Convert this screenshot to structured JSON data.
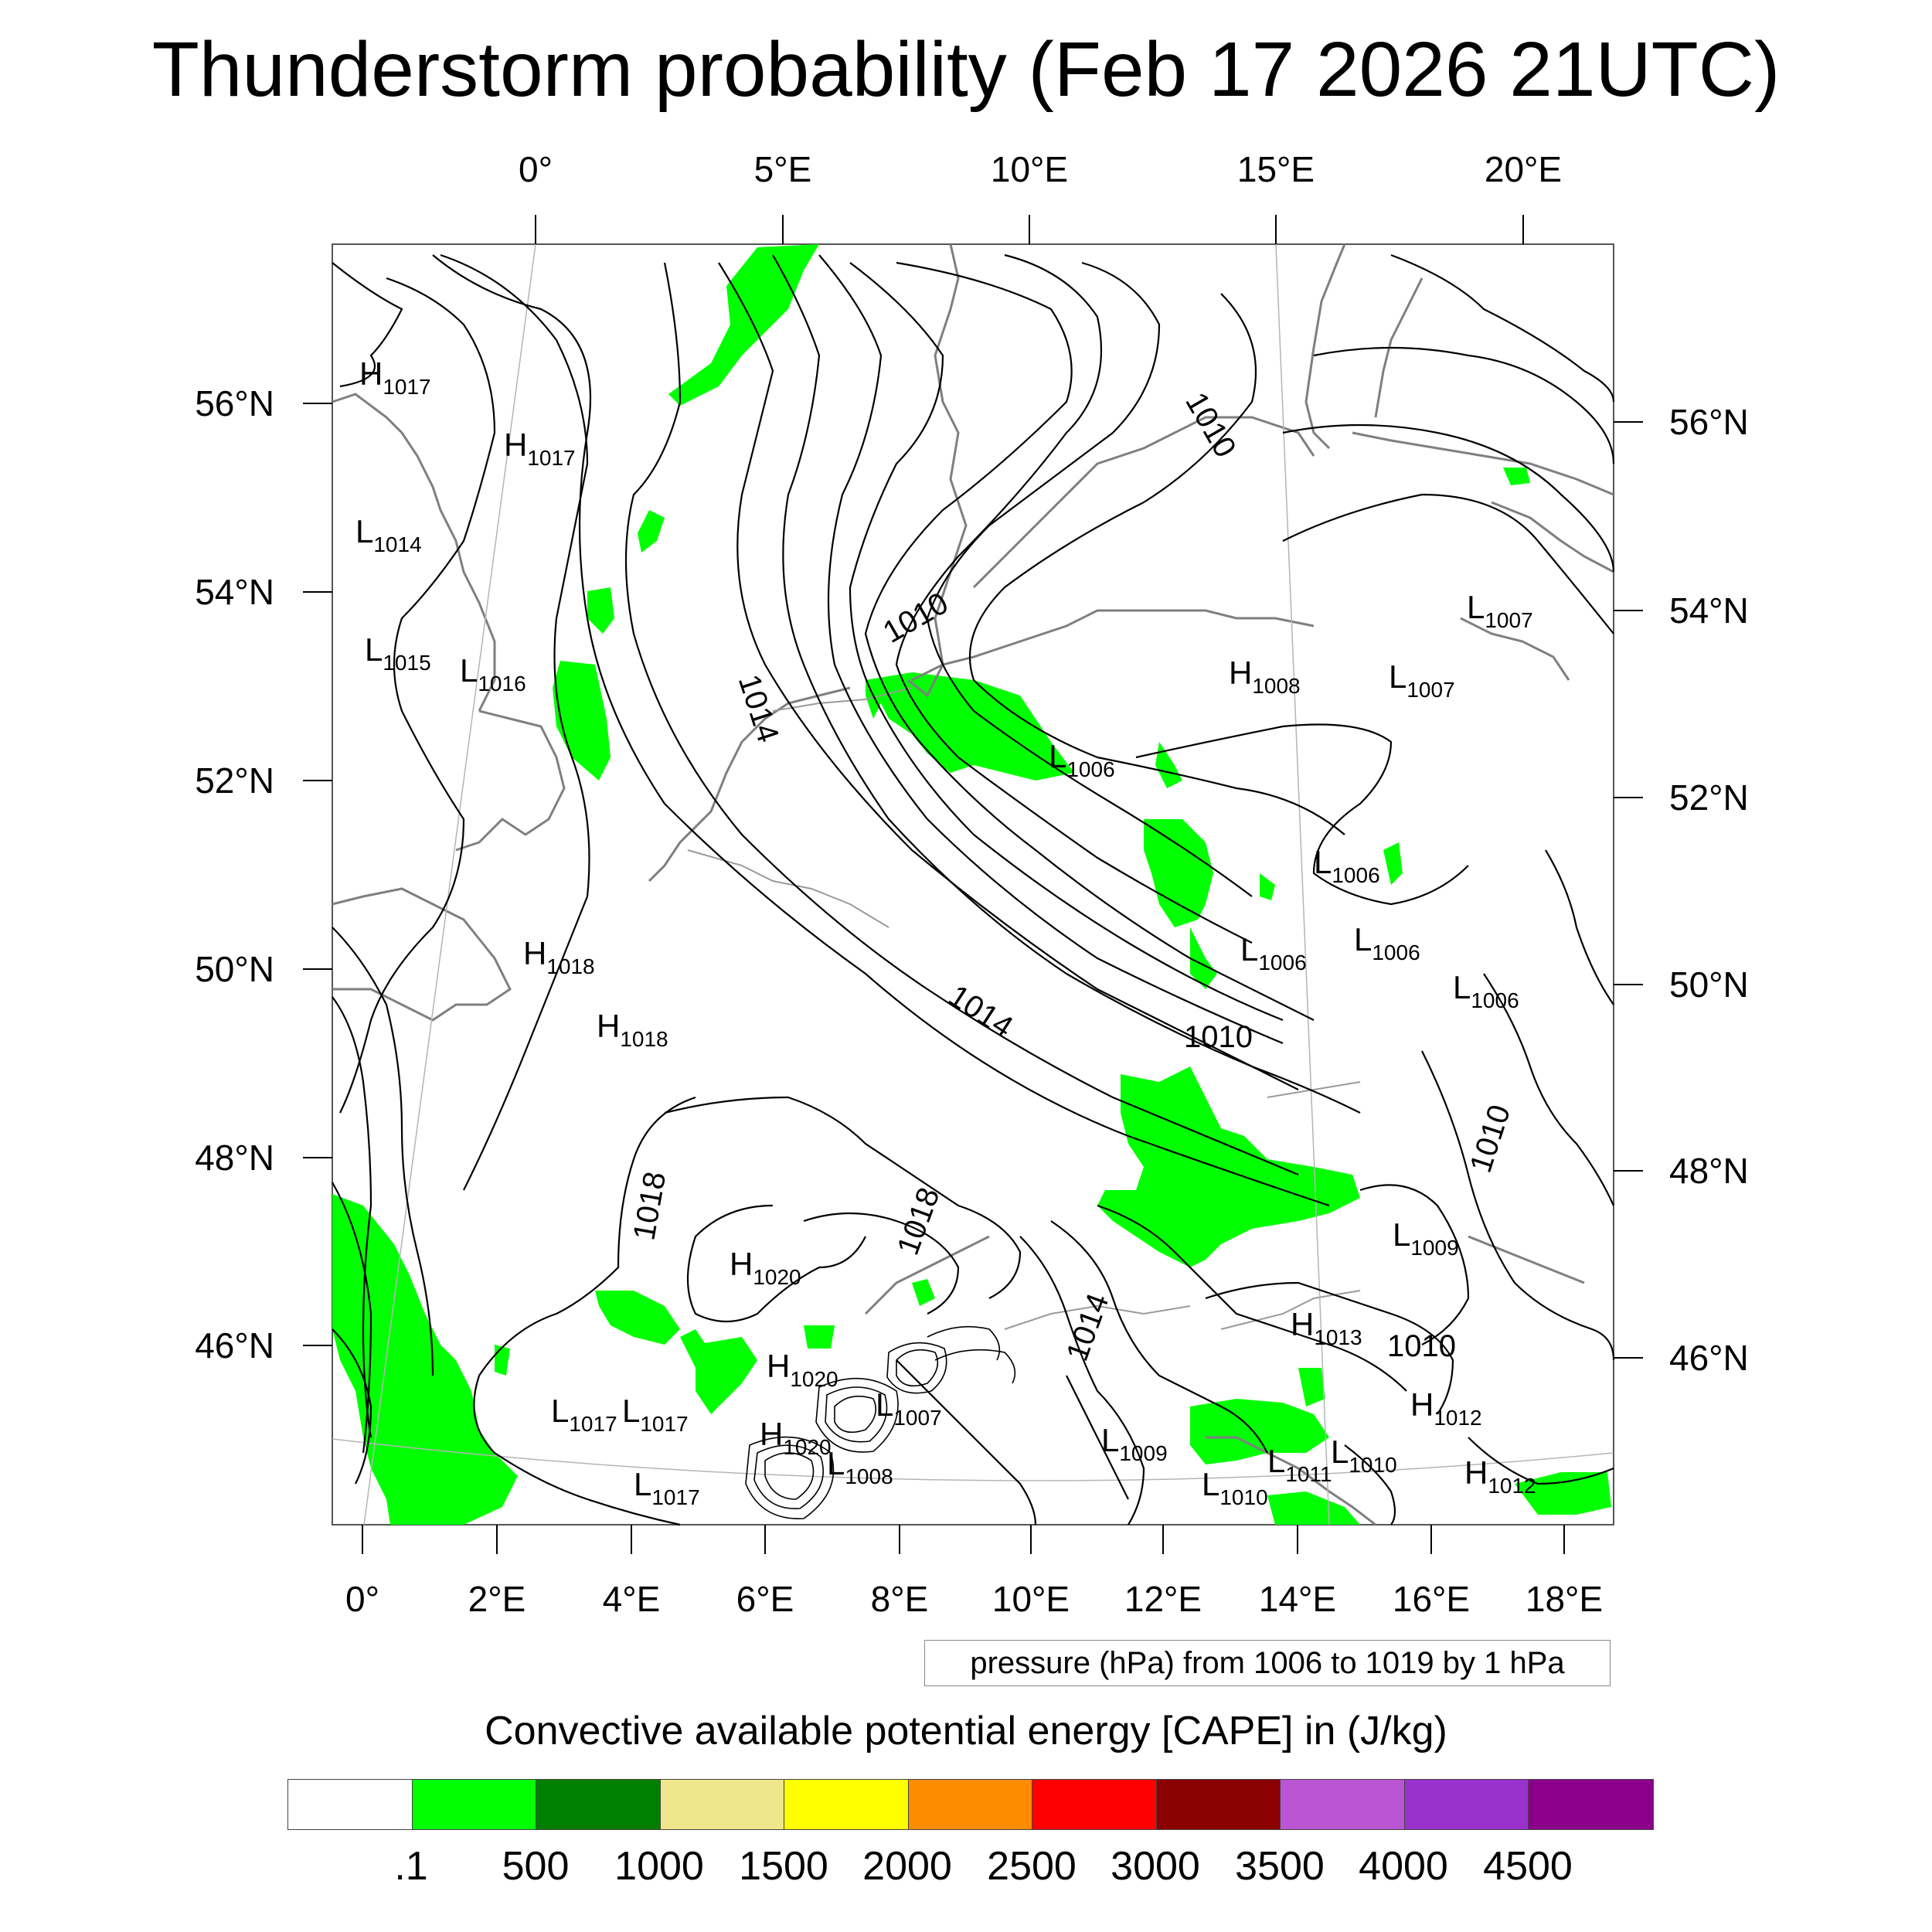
{
  "title": "Thunderstorm probability (Feb 17 2026 21UTC)",
  "axes": {
    "top_ticks": [
      "0°",
      "5°E",
      "10°E",
      "15°E",
      "20°E"
    ],
    "bottom_ticks": [
      "0°",
      "2°E",
      "4°E",
      "6°E",
      "8°E",
      "10°E",
      "12°E",
      "14°E",
      "16°E",
      "18°E"
    ],
    "left_ticks": [
      "56°N",
      "54°N",
      "52°N",
      "50°N",
      "48°N",
      "46°N"
    ],
    "right_ticks": [
      "56°N",
      "54°N",
      "52°N",
      "50°N",
      "48°N",
      "46°N"
    ]
  },
  "pressure_note": "pressure (hPa) from 1006 to 1019 by 1 hPa",
  "pressure_centers": [
    {
      "type": "H",
      "value": "1017"
    },
    {
      "type": "H",
      "value": "1017"
    },
    {
      "type": "L",
      "value": "1014"
    },
    {
      "type": "L",
      "value": "1015"
    },
    {
      "type": "L",
      "value": "1016"
    },
    {
      "type": "H",
      "value": "1018"
    },
    {
      "type": "H",
      "value": "1018"
    },
    {
      "type": "H",
      "value": "1020"
    },
    {
      "type": "H",
      "value": "1020"
    },
    {
      "type": "H",
      "value": "1020"
    },
    {
      "type": "L",
      "value": "1017"
    },
    {
      "type": "L",
      "value": "1017"
    },
    {
      "type": "L",
      "value": "1017"
    },
    {
      "type": "L",
      "value": "1007"
    },
    {
      "type": "L",
      "value": "1008"
    },
    {
      "type": "L",
      "value": "1009"
    },
    {
      "type": "L",
      "value": "1010"
    },
    {
      "type": "L",
      "value": "1011"
    },
    {
      "type": "L",
      "value": "1010"
    },
    {
      "type": "H",
      "value": "1013"
    },
    {
      "type": "H",
      "value": "1012"
    },
    {
      "type": "H",
      "value": "1012"
    },
    {
      "type": "L",
      "value": "1009"
    },
    {
      "type": "L",
      "value": "1006"
    },
    {
      "type": "L",
      "value": "1006"
    },
    {
      "type": "L",
      "value": "1006"
    },
    {
      "type": "L",
      "value": "1006"
    },
    {
      "type": "L",
      "value": "1006"
    },
    {
      "type": "H",
      "value": "1008"
    },
    {
      "type": "L",
      "value": "1007"
    },
    {
      "type": "L",
      "value": "1007"
    }
  ],
  "isobar_labels": [
    "1010",
    "1010",
    "1014",
    "1014",
    "1010",
    "1010",
    "1018",
    "1018",
    "1014",
    "1010"
  ],
  "colorbar": {
    "title": "Convective available potential energy [CAPE] in (J/kg)",
    "colors": [
      "#ffffff",
      "#00ff00",
      "#008000",
      "#f0e68c",
      "#ffff00",
      "#ff8c00",
      "#ff0000",
      "#8b0000",
      "#ba55d3",
      "#9932cc",
      "#8b008b"
    ],
    "labels": [
      ".1",
      "500",
      "1000",
      "1500",
      "2000",
      "2500",
      "3000",
      "3500",
      "4000",
      "4500"
    ]
  }
}
